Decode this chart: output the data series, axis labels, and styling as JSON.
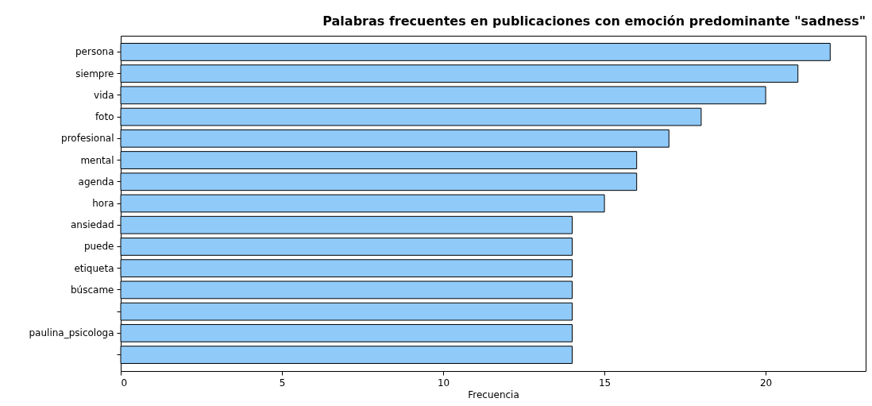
{
  "chart_data": {
    "type": "bar",
    "orientation": "horizontal",
    "title": "Palabras frecuentes en publicaciones con emoción predominante \"sadness\"",
    "xlabel": "Frecuencia",
    "categories": [
      "persona",
      "siempre",
      "vida",
      "foto",
      "profesional",
      "mental",
      "agenda",
      "hora",
      "ansiedad",
      "puede",
      "etiqueta",
      "búscame",
      null,
      "paulina_psicologa",
      null
    ],
    "values": [
      22,
      21,
      20,
      18,
      17,
      16,
      16,
      15,
      14,
      14,
      14,
      14,
      14,
      14,
      14
    ],
    "color": "#90caf9",
    "xlim": [
      0,
      23.1
    ],
    "xticks": [
      0,
      5,
      10,
      15,
      20
    ],
    "grid": false
  }
}
